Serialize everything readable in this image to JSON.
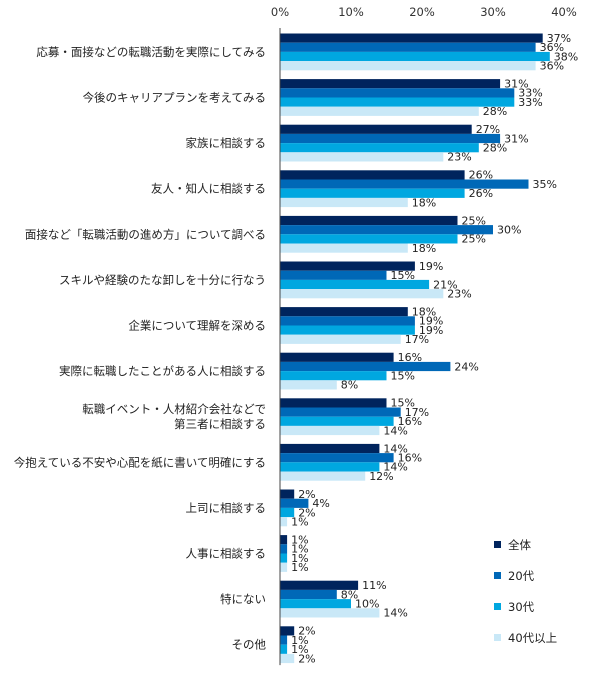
{
  "chart_data": {
    "type": "bar",
    "orientation": "horizontal",
    "xlim": [
      0,
      40
    ],
    "x_ticks": [
      "0%",
      "10%",
      "20%",
      "30%",
      "40%"
    ],
    "tick_axis_position": "top",
    "value_suffix": "%",
    "categories": [
      "応募・面接などの転職活動を実際にしてみる",
      "今後のキャリアプランを考えてみる",
      "家族に相談する",
      "友人・知人に相談する",
      "面接など「転職活動の進め方」について調べる",
      "スキルや経験のたな卸しを十分に行なう",
      "企業について理解を深める",
      "実際に転職したことがある人に相談する",
      "転職イベント・人材紹介会社などで\n第三者に相談する",
      "今抱えている不安や心配を紙に書いて明確にする",
      "上司に相談する",
      "人事に相談する",
      "特にない",
      "その他"
    ],
    "series": [
      {
        "name": "全体",
        "color": "#00245d",
        "values": [
          37,
          31,
          27,
          26,
          25,
          19,
          18,
          16,
          15,
          14,
          2,
          1,
          11,
          2
        ]
      },
      {
        "name": "20代",
        "color": "#0068b7",
        "values": [
          36,
          33,
          31,
          35,
          30,
          15,
          19,
          24,
          17,
          16,
          4,
          1,
          8,
          1
        ]
      },
      {
        "name": "30代",
        "color": "#00a7e0",
        "values": [
          38,
          33,
          28,
          26,
          25,
          21,
          19,
          15,
          16,
          14,
          2,
          1,
          10,
          1
        ]
      },
      {
        "name": "40代以上",
        "color": "#c9e8f7",
        "values": [
          36,
          28,
          23,
          18,
          18,
          23,
          17,
          8,
          14,
          12,
          1,
          1,
          14,
          2
        ]
      }
    ],
    "legend_position": "bottom-right",
    "grid": false
  }
}
